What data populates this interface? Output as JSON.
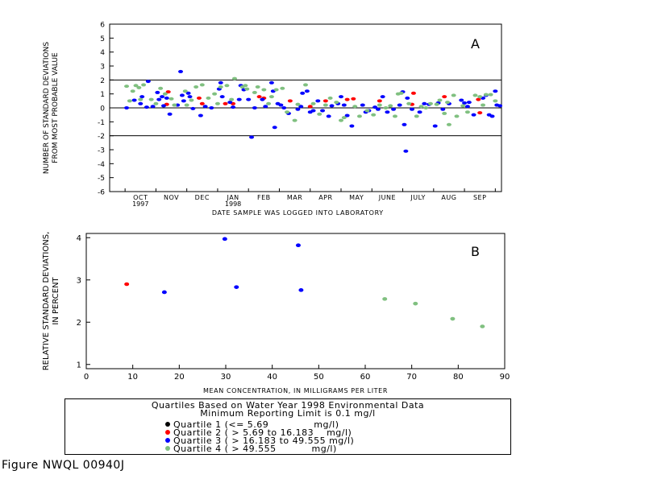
{
  "chart_data": [
    {
      "type": "scatter",
      "panel_label": "A",
      "ylabel": "NUMBER OF STANDARD DEVIATIONS FROM MOST PROBABLE VALUE",
      "ylabel_lines": [
        "NUMBER OF STANDARD DEVIATIONS",
        "FROM MOST PROBABLE VALUE"
      ],
      "xlabel": "DATE SAMPLE WAS LOGGED INTO LABORATORY",
      "ylim": [
        -6,
        6
      ],
      "yticks": [
        -6,
        -5,
        -4,
        -3,
        -2,
        -1,
        0,
        1,
        2,
        3,
        4,
        5,
        6
      ],
      "reference_lines": [
        2,
        0,
        -2
      ],
      "month_labels": [
        {
          "label": "OCT",
          "sub": "1997"
        },
        {
          "label": "NOV",
          "sub": ""
        },
        {
          "label": "DEC",
          "sub": ""
        },
        {
          "label": "JAN",
          "sub": "1998"
        },
        {
          "label": "FEB",
          "sub": ""
        },
        {
          "label": "MAR",
          "sub": ""
        },
        {
          "label": "APR",
          "sub": ""
        },
        {
          "label": "MAY",
          "sub": ""
        },
        {
          "label": "JUNE",
          "sub": ""
        },
        {
          "label": "JULY",
          "sub": ""
        },
        {
          "label": "AUG",
          "sub": ""
        },
        {
          "label": "SEP",
          "sub": ""
        }
      ],
      "x_unit": "month index (0 = Oct 1997, 12 = end of Sep 1998)",
      "xlim": [
        -0.5,
        12.2
      ],
      "series": [
        {
          "name": "Quartile 2",
          "color": "#ff0000",
          "points": [
            [
              1.35,
              0.25
            ],
            [
              1.4,
              1.15
            ],
            [
              2.4,
              0.7
            ],
            [
              2.5,
              0.3
            ],
            [
              3.25,
              0.3
            ],
            [
              3.5,
              0.3
            ],
            [
              4.35,
              0.8
            ],
            [
              4.5,
              0.7
            ],
            [
              5.35,
              0.5
            ],
            [
              6.0,
              0.1
            ],
            [
              6.5,
              0.5
            ],
            [
              7.2,
              0.6
            ],
            [
              7.4,
              0.65
            ],
            [
              8.25,
              0.5
            ],
            [
              9.3,
              0.25
            ],
            [
              9.35,
              1.05
            ],
            [
              10.35,
              0.8
            ],
            [
              11.45,
              0.6
            ],
            [
              11.5,
              -0.35
            ]
          ]
        },
        {
          "name": "Quartile 3",
          "color": "#0000ff",
          "points": [
            [
              0.05,
              0.0
            ],
            [
              0.3,
              0.55
            ],
            [
              0.5,
              0.3
            ],
            [
              0.55,
              0.8
            ],
            [
              0.7,
              0.05
            ],
            [
              0.75,
              1.9
            ],
            [
              0.9,
              0.1
            ],
            [
              1.05,
              1.1
            ],
            [
              1.1,
              0.6
            ],
            [
              1.2,
              0.8
            ],
            [
              1.25,
              0.15
            ],
            [
              1.35,
              0.7
            ],
            [
              1.45,
              -0.45
            ],
            [
              1.7,
              0.2
            ],
            [
              1.8,
              2.6
            ],
            [
              1.85,
              0.9
            ],
            [
              1.9,
              0.5
            ],
            [
              2.05,
              1.05
            ],
            [
              2.1,
              0.8
            ],
            [
              2.2,
              -0.05
            ],
            [
              2.45,
              -0.55
            ],
            [
              2.6,
              0.1
            ],
            [
              2.8,
              0.0
            ],
            [
              3.05,
              1.35
            ],
            [
              3.1,
              1.8
            ],
            [
              3.15,
              0.8
            ],
            [
              3.4,
              0.4
            ],
            [
              3.5,
              0.05
            ],
            [
              3.7,
              0.6
            ],
            [
              3.75,
              1.6
            ],
            [
              3.85,
              1.3
            ],
            [
              4.0,
              0.6
            ],
            [
              4.1,
              -2.1
            ],
            [
              4.2,
              0.0
            ],
            [
              4.45,
              0.6
            ],
            [
              4.55,
              0.1
            ],
            [
              4.75,
              1.8
            ],
            [
              4.8,
              1.2
            ],
            [
              4.85,
              -1.4
            ],
            [
              4.95,
              0.3
            ],
            [
              5.05,
              0.2
            ],
            [
              5.15,
              0.0
            ],
            [
              5.3,
              -0.4
            ],
            [
              5.6,
              -0.1
            ],
            [
              5.7,
              0.1
            ],
            [
              5.75,
              1.05
            ],
            [
              5.9,
              1.2
            ],
            [
              6.0,
              -0.3
            ],
            [
              6.1,
              -0.2
            ],
            [
              6.25,
              0.5
            ],
            [
              6.4,
              -0.2
            ],
            [
              6.6,
              -0.6
            ],
            [
              6.7,
              0.15
            ],
            [
              6.9,
              0.3
            ],
            [
              7.0,
              0.8
            ],
            [
              7.1,
              0.2
            ],
            [
              7.2,
              -0.55
            ],
            [
              7.35,
              -1.3
            ],
            [
              7.7,
              0.2
            ],
            [
              7.8,
              -0.3
            ],
            [
              7.9,
              -0.2
            ],
            [
              8.1,
              0.05
            ],
            [
              8.2,
              -0.1
            ],
            [
              8.35,
              0.8
            ],
            [
              8.5,
              -0.3
            ],
            [
              8.7,
              -0.1
            ],
            [
              8.9,
              0.2
            ],
            [
              9.0,
              1.15
            ],
            [
              9.05,
              -1.2
            ],
            [
              9.1,
              -3.1
            ],
            [
              9.15,
              0.7
            ],
            [
              9.3,
              -0.1
            ],
            [
              9.55,
              -0.3
            ],
            [
              9.7,
              0.3
            ],
            [
              9.85,
              0.25
            ],
            [
              10.05,
              -1.3
            ],
            [
              10.15,
              0.35
            ],
            [
              10.3,
              -0.1
            ],
            [
              10.5,
              0.3
            ],
            [
              10.9,
              0.55
            ],
            [
              11.0,
              0.35
            ],
            [
              11.1,
              0.1
            ],
            [
              11.15,
              0.4
            ],
            [
              11.3,
              -0.5
            ],
            [
              11.6,
              0.7
            ],
            [
              11.7,
              0.9
            ],
            [
              11.8,
              -0.5
            ],
            [
              11.9,
              -0.6
            ],
            [
              12.0,
              1.2
            ],
            [
              12.05,
              0.2
            ],
            [
              12.15,
              0.15
            ]
          ]
        },
        {
          "name": "Quartile 4",
          "color": "#80c080",
          "points": [
            [
              0.05,
              1.55
            ],
            [
              0.15,
              0.5
            ],
            [
              0.25,
              1.2
            ],
            [
              0.35,
              1.6
            ],
            [
              0.45,
              1.45
            ],
            [
              0.5,
              0.6
            ],
            [
              0.6,
              1.65
            ],
            [
              0.85,
              0.6
            ],
            [
              1.0,
              0.3
            ],
            [
              1.15,
              1.4
            ],
            [
              1.3,
              1.0
            ],
            [
              1.5,
              0.65
            ],
            [
              1.6,
              0.2
            ],
            [
              1.95,
              1.2
            ],
            [
              2.0,
              0.2
            ],
            [
              2.15,
              0.55
            ],
            [
              2.3,
              1.5
            ],
            [
              2.5,
              1.65
            ],
            [
              2.7,
              0.7
            ],
            [
              2.9,
              1.0
            ],
            [
              3.0,
              0.3
            ],
            [
              3.1,
              1.5
            ],
            [
              3.3,
              1.6
            ],
            [
              3.45,
              0.6
            ],
            [
              3.55,
              2.1
            ],
            [
              3.8,
              1.5
            ],
            [
              3.9,
              1.6
            ],
            [
              3.95,
              1.35
            ],
            [
              4.2,
              1.1
            ],
            [
              4.3,
              1.5
            ],
            [
              4.5,
              1.3
            ],
            [
              4.65,
              0.3
            ],
            [
              4.75,
              0.8
            ],
            [
              4.9,
              1.3
            ],
            [
              5.1,
              1.4
            ],
            [
              5.25,
              -0.3
            ],
            [
              5.5,
              -0.9
            ],
            [
              5.6,
              0.25
            ],
            [
              5.85,
              1.65
            ],
            [
              6.1,
              0.3
            ],
            [
              6.3,
              -0.45
            ],
            [
              6.5,
              0.2
            ],
            [
              6.65,
              0.7
            ],
            [
              6.85,
              0.4
            ],
            [
              7.0,
              -0.9
            ],
            [
              7.1,
              -0.7
            ],
            [
              7.45,
              0.1
            ],
            [
              7.6,
              -0.6
            ],
            [
              7.85,
              -0.2
            ],
            [
              8.05,
              -0.5
            ],
            [
              8.25,
              0.2
            ],
            [
              8.45,
              0.0
            ],
            [
              8.6,
              0.15
            ],
            [
              8.75,
              -0.6
            ],
            [
              8.85,
              1.0
            ],
            [
              8.95,
              1.05
            ],
            [
              9.2,
              0.3
            ],
            [
              9.45,
              -0.6
            ],
            [
              9.6,
              0.1
            ],
            [
              9.75,
              0.0
            ],
            [
              9.9,
              0.3
            ],
            [
              10.1,
              0.25
            ],
            [
              10.2,
              0.55
            ],
            [
              10.35,
              -0.4
            ],
            [
              10.45,
              0.4
            ],
            [
              10.5,
              -1.2
            ],
            [
              10.65,
              0.9
            ],
            [
              10.75,
              -0.6
            ],
            [
              10.95,
              0.15
            ],
            [
              11.1,
              -0.3
            ],
            [
              11.35,
              0.9
            ],
            [
              11.5,
              0.8
            ],
            [
              11.6,
              0.2
            ],
            [
              11.7,
              0.95
            ],
            [
              11.85,
              0.95
            ],
            [
              12.0,
              0.5
            ]
          ]
        }
      ]
    },
    {
      "type": "scatter",
      "panel_label": "B",
      "ylabel": "RELATIVE STANDARD DEVIATIONS, IN PERCENT",
      "ylabel_lines": [
        "RELATIVE STANDARD DEVIATIONS,",
        "IN PERCENT"
      ],
      "xlabel": "MEAN CONCENTRATION, IN MILLIGRAMS PER LITER",
      "xlim": [
        0,
        90
      ],
      "ylim": [
        1,
        4
      ],
      "xticks": [
        0,
        10,
        20,
        30,
        40,
        50,
        60,
        70,
        80,
        90
      ],
      "yticks": [
        1,
        2,
        3,
        4
      ],
      "series": [
        {
          "name": "Quartile 2",
          "color": "#ff0000",
          "points": [
            [
              8.7,
              2.9
            ]
          ]
        },
        {
          "name": "Quartile 3",
          "color": "#0000ff",
          "points": [
            [
              16.8,
              2.71
            ],
            [
              29.8,
              3.97
            ],
            [
              32.3,
              2.83
            ],
            [
              45.6,
              3.82
            ],
            [
              46.2,
              2.76
            ]
          ]
        },
        {
          "name": "Quartile 4",
          "color": "#80c080",
          "points": [
            [
              64.2,
              2.55
            ],
            [
              70.8,
              2.44
            ],
            [
              78.8,
              2.08
            ],
            [
              85.2,
              1.9
            ]
          ]
        }
      ]
    }
  ],
  "legend": {
    "title_line1": "Quartiles Based on Water Year 1998 Environmental Data",
    "title_line2": "Minimum Reporting Limit is 0.1 mg/l",
    "items": [
      {
        "color": "#000000",
        "text": "Quartile 1 (<= 5.69              mg/l)"
      },
      {
        "color": "#ff0000",
        "text": "Quartile 2 ( > 5.69 to 16.183    mg/l)"
      },
      {
        "color": "#0000ff",
        "text": "Quartile 3 ( > 16.183 to 49.555 mg/l)"
      },
      {
        "color": "#80c080",
        "text": "Quartile 4 ( > 49.555           mg/l)"
      }
    ]
  },
  "caption": "Figure NWQL 00940J"
}
